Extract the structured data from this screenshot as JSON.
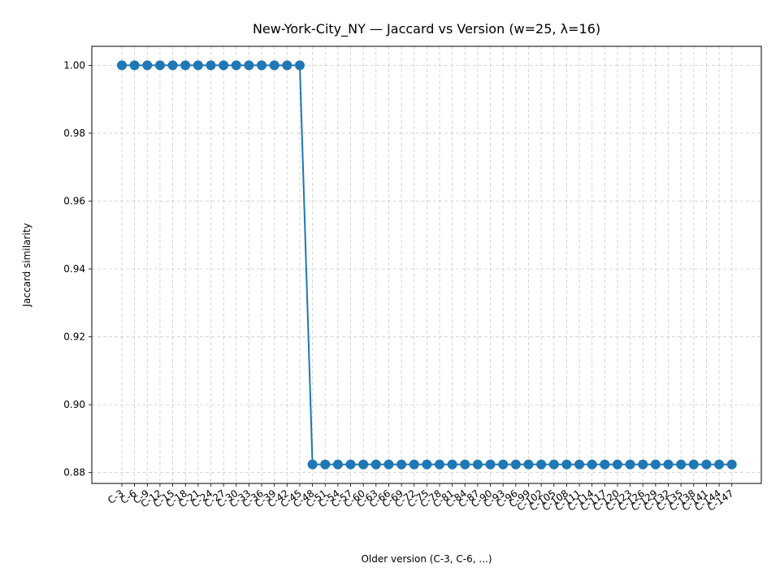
{
  "chart_data": {
    "type": "line",
    "title": "New-York-City_NY — Jaccard vs Version (w=25, λ=16)",
    "xlabel": "Older version (C-3, C-6, ...)",
    "ylabel": "Jaccard similarity",
    "categories": [
      "C-3",
      "C-6",
      "C-9",
      "C-12",
      "C-15",
      "C-18",
      "C-21",
      "C-24",
      "C-27",
      "C-30",
      "C-33",
      "C-36",
      "C-39",
      "C-42",
      "C-45",
      "C-48",
      "C-51",
      "C-54",
      "C-57",
      "C-60",
      "C-63",
      "C-66",
      "C-69",
      "C-72",
      "C-75",
      "C-78",
      "C-81",
      "C-84",
      "C-87",
      "C-90",
      "C-93",
      "C-96",
      "C-99",
      "C-102",
      "C-105",
      "C-108",
      "C-111",
      "C-114",
      "C-117",
      "C-120",
      "C-123",
      "C-126",
      "C-129",
      "C-132",
      "C-135",
      "C-138",
      "C-141",
      "C-144",
      "C-147"
    ],
    "series": [
      {
        "values": [
          1.0,
          1.0,
          1.0,
          1.0,
          1.0,
          1.0,
          1.0,
          1.0,
          1.0,
          1.0,
          1.0,
          1.0,
          1.0,
          1.0,
          1.0,
          0.8824,
          0.8824,
          0.8824,
          0.8824,
          0.8824,
          0.8824,
          0.8824,
          0.8824,
          0.8824,
          0.8824,
          0.8824,
          0.8824,
          0.8824,
          0.8824,
          0.8824,
          0.8824,
          0.8824,
          0.8824,
          0.8824,
          0.8824,
          0.8824,
          0.8824,
          0.8824,
          0.8824,
          0.8824,
          0.8824,
          0.8824,
          0.8824,
          0.8824,
          0.8824,
          0.8824,
          0.8824,
          0.8824,
          0.8824
        ],
        "color": "#1f77b4"
      }
    ],
    "yticks": [
      "0.88",
      "0.90",
      "0.92",
      "0.94",
      "0.96",
      "0.98",
      "1.00"
    ],
    "ylim": [
      0.8768,
      1.0056
    ],
    "grid": true,
    "marker": "circle"
  }
}
